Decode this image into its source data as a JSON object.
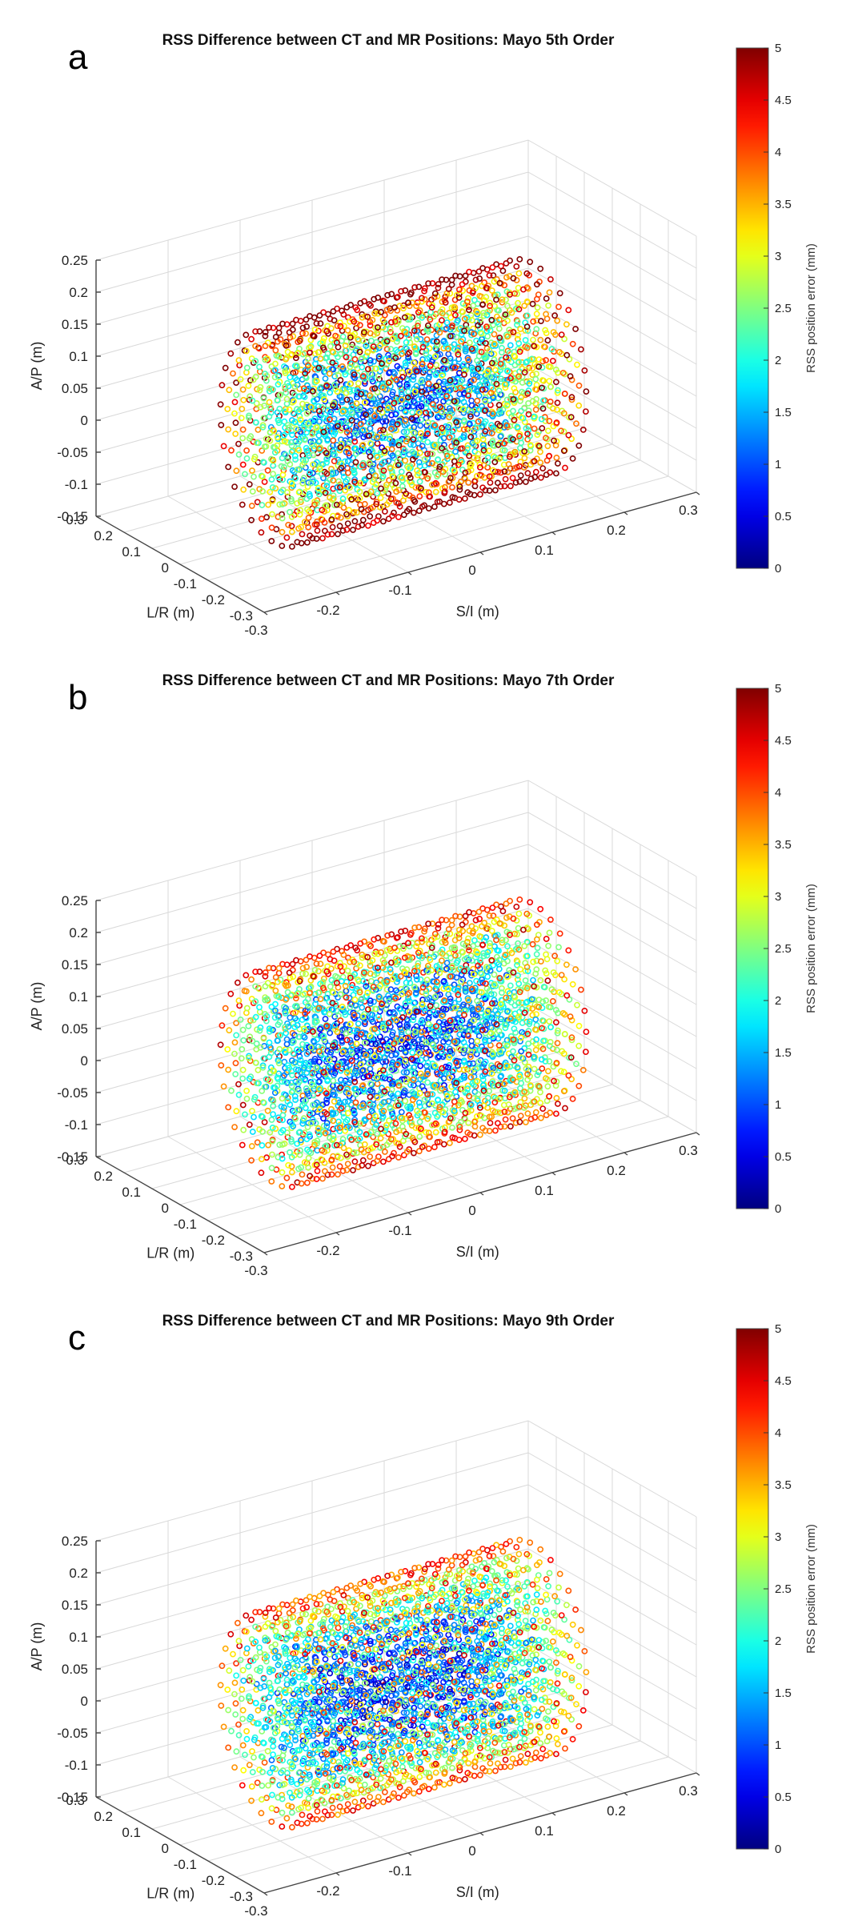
{
  "chart_data": [
    {
      "type": "scatter",
      "panel_label": "a",
      "title": "RSS Difference between CT and MR Positions: Mayo 5th Order",
      "xlabel": "S/I (m)",
      "ylabel": "L/R (m)",
      "zlabel": "A/P (m)",
      "colorbar_label": "RSS position error (mm)",
      "x_ticks": [
        "-0.3",
        "-0.2",
        "-0.1",
        "0",
        "0.1",
        "0.2",
        "0.3"
      ],
      "y_ticks": [
        "-0.3",
        "-0.2",
        "-0.1",
        "0",
        "0.1",
        "0.2",
        "0.3"
      ],
      "z_ticks": [
        "-0.15",
        "-0.1",
        "-0.05",
        "0",
        "0.05",
        "0.1",
        "0.15",
        "0.2",
        "0.25"
      ],
      "colorbar_ticks": [
        "0",
        "0.5",
        "1",
        "1.5",
        "2",
        "2.5",
        "3",
        "3.5",
        "4",
        "4.5",
        "5"
      ],
      "xlim": [
        -0.3,
        0.3
      ],
      "ylim": [
        -0.3,
        0.3
      ],
      "zlim": [
        -0.15,
        0.25
      ],
      "clim": [
        0,
        5
      ],
      "colormap": "jet",
      "grid": true,
      "point_cloud": {
        "shape": "cylinder",
        "axis": "S/I",
        "si_range_m": [
          -0.17,
          0.19
        ],
        "radius_m": 0.19,
        "center_error_mm": 1.0,
        "edge_error_mm": 5.0,
        "note": "values estimated from colour; errors grow from about 1 mm in the center to 5+ mm at the edges"
      }
    },
    {
      "type": "scatter",
      "panel_label": "b",
      "title": "RSS Difference between CT and MR Positions: Mayo 7th Order",
      "xlabel": "S/I (m)",
      "ylabel": "L/R (m)",
      "zlabel": "A/P (m)",
      "colorbar_label": "RSS position error (mm)",
      "x_ticks": [
        "-0.3",
        "-0.2",
        "-0.1",
        "0",
        "0.1",
        "0.2",
        "0.3"
      ],
      "y_ticks": [
        "-0.3",
        "-0.2",
        "-0.1",
        "0",
        "0.1",
        "0.2",
        "0.3"
      ],
      "z_ticks": [
        "-0.15",
        "-0.1",
        "-0.05",
        "0",
        "0.05",
        "0.1",
        "0.15",
        "0.2",
        "0.25"
      ],
      "colorbar_ticks": [
        "0",
        "0.5",
        "1",
        "1.5",
        "2",
        "2.5",
        "3",
        "3.5",
        "4",
        "4.5",
        "5"
      ],
      "xlim": [
        -0.3,
        0.3
      ],
      "ylim": [
        -0.3,
        0.3
      ],
      "zlim": [
        -0.15,
        0.25
      ],
      "clim": [
        0,
        5
      ],
      "colormap": "jet",
      "grid": true,
      "point_cloud": {
        "shape": "cylinder",
        "axis": "S/I",
        "si_range_m": [
          -0.17,
          0.19
        ],
        "radius_m": 0.19,
        "center_error_mm": 0.8,
        "edge_error_mm": 4.2,
        "note": "values estimated from colour; fewer high-error points than 5th order"
      }
    },
    {
      "type": "scatter",
      "panel_label": "c",
      "title": "RSS Difference between CT and MR Positions: Mayo 9th Order",
      "xlabel": "S/I (m)",
      "ylabel": "L/R (m)",
      "zlabel": "A/P (m)",
      "colorbar_label": "RSS position error (mm)",
      "x_ticks": [
        "-0.3",
        "-0.2",
        "-0.1",
        "0",
        "0.1",
        "0.2",
        "0.3"
      ],
      "y_ticks": [
        "-0.3",
        "-0.2",
        "-0.1",
        "0",
        "0.1",
        "0.2",
        "0.3"
      ],
      "z_ticks": [
        "-0.15",
        "-0.1",
        "-0.05",
        "0",
        "0.05",
        "0.1",
        "0.15",
        "0.2",
        "0.25"
      ],
      "colorbar_ticks": [
        "0",
        "0.5",
        "1",
        "1.5",
        "2",
        "2.5",
        "3",
        "3.5",
        "4",
        "4.5",
        "5"
      ],
      "xlim": [
        -0.3,
        0.3
      ],
      "ylim": [
        -0.3,
        0.3
      ],
      "zlim": [
        -0.15,
        0.25
      ],
      "clim": [
        0,
        5
      ],
      "colormap": "jet",
      "grid": true,
      "point_cloud": {
        "shape": "cylinder",
        "axis": "S/I",
        "si_range_m": [
          -0.17,
          0.19
        ],
        "radius_m": 0.19,
        "center_error_mm": 0.7,
        "edge_error_mm": 4.0,
        "note": "values estimated from colour; lowest overall error of the three fits"
      }
    }
  ]
}
